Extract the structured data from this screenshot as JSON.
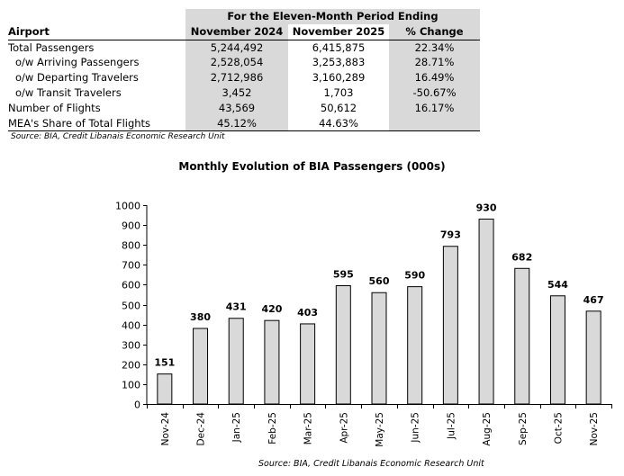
{
  "table": {
    "period_header": "For the Eleven-Month Period Ending",
    "columns": [
      "Airport",
      "November 2024",
      "November 2025",
      "% Change"
    ],
    "rows": [
      {
        "label": "Total Passengers",
        "v1": "5,244,492",
        "v2": "6,415,875",
        "chg": "22.34%"
      },
      {
        "label": "o/w Arriving Passengers",
        "v1": "2,528,054",
        "v2": "3,253,883",
        "chg": "28.71%"
      },
      {
        "label": "o/w Departing Travelers",
        "v1": "2,712,986",
        "v2": "3,160,289",
        "chg": "16.49%"
      },
      {
        "label": "o/w Transit Travelers",
        "v1": "3,452",
        "v2": "1,703",
        "chg": "-50.67%"
      },
      {
        "label": "Number of Flights",
        "v1": "43,569",
        "v2": "50,612",
        "chg": "16.17%"
      },
      {
        "label": "MEA's Share of Total Flights",
        "v1": "45.12%",
        "v2": "44.63%",
        "chg": ""
      }
    ],
    "source": "Source: BIA, Credit Libanais Economic Research Unit"
  },
  "chart_data": {
    "type": "bar",
    "title": "Monthly Evolution of BIA Passengers (000s)",
    "categories": [
      "Nov-24",
      "Dec-24",
      "Jan-25",
      "Feb-25",
      "Mar-25",
      "Apr-25",
      "May-25",
      "Jun-25",
      "Jul-25",
      "Aug-25",
      "Sep-25",
      "Oct-25",
      "Nov-25"
    ],
    "values": [
      151,
      380,
      431,
      420,
      403,
      595,
      560,
      590,
      793,
      930,
      682,
      544,
      467
    ],
    "yticks": [
      0,
      100,
      200,
      300,
      400,
      500,
      600,
      700,
      800,
      900,
      1000
    ],
    "ylim": [
      0,
      1000
    ],
    "xlabel": "",
    "ylabel": "",
    "bar_color": "#d9d9d9",
    "source": "Source:  BIA, Credit Libanais Economic Research Unit"
  }
}
